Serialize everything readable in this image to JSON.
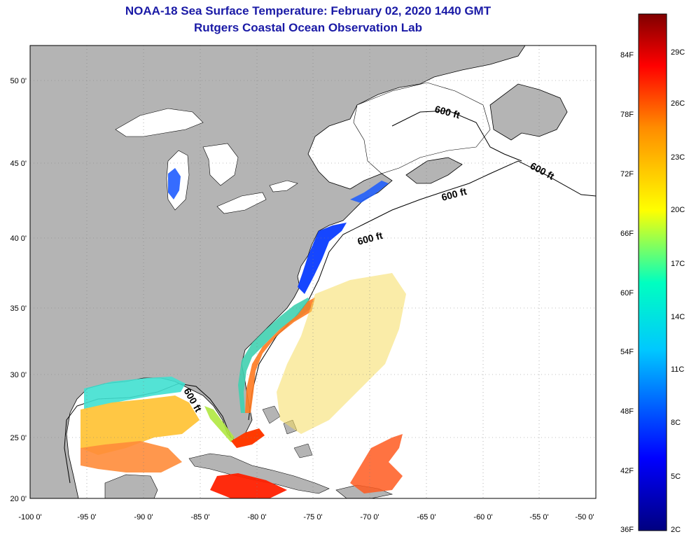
{
  "title": {
    "line1": "NOAA-18 Sea Surface Temperature:  February 02, 2020 1440 GMT",
    "line2": "Rutgers Coastal Ocean Observation Lab"
  },
  "map": {
    "lon_labels": [
      "-100 0'",
      "-95 0'",
      "-90 0'",
      "-85 0'",
      "-80 0'",
      "-75 0'",
      "-70 0'",
      "-65 0'",
      "-60 0'",
      "-55 0'",
      "-50 0'"
    ],
    "lat_labels": [
      "50 0'",
      "45 0'",
      "40 0'",
      "35 0'",
      "30 0'",
      "25 0'",
      "20 0'"
    ],
    "contour_label": "600 ft",
    "colors": {
      "land": "#b4b4b4",
      "ocean": "#ffffff",
      "grid": "#808080"
    }
  },
  "colorbar": {
    "f_labels": [
      "84F",
      "78F",
      "72F",
      "66F",
      "60F",
      "54F",
      "48F",
      "42F",
      "36F"
    ],
    "c_labels": [
      "29C",
      "26C",
      "23C",
      "20C",
      "17C",
      "14C",
      "11C",
      "8C",
      "5C",
      "2C"
    ],
    "colors": [
      "#000080",
      "#0000ff",
      "#00c8ff",
      "#00ffc0",
      "#ffff00",
      "#ff8c00",
      "#ff0000",
      "#800000"
    ]
  }
}
